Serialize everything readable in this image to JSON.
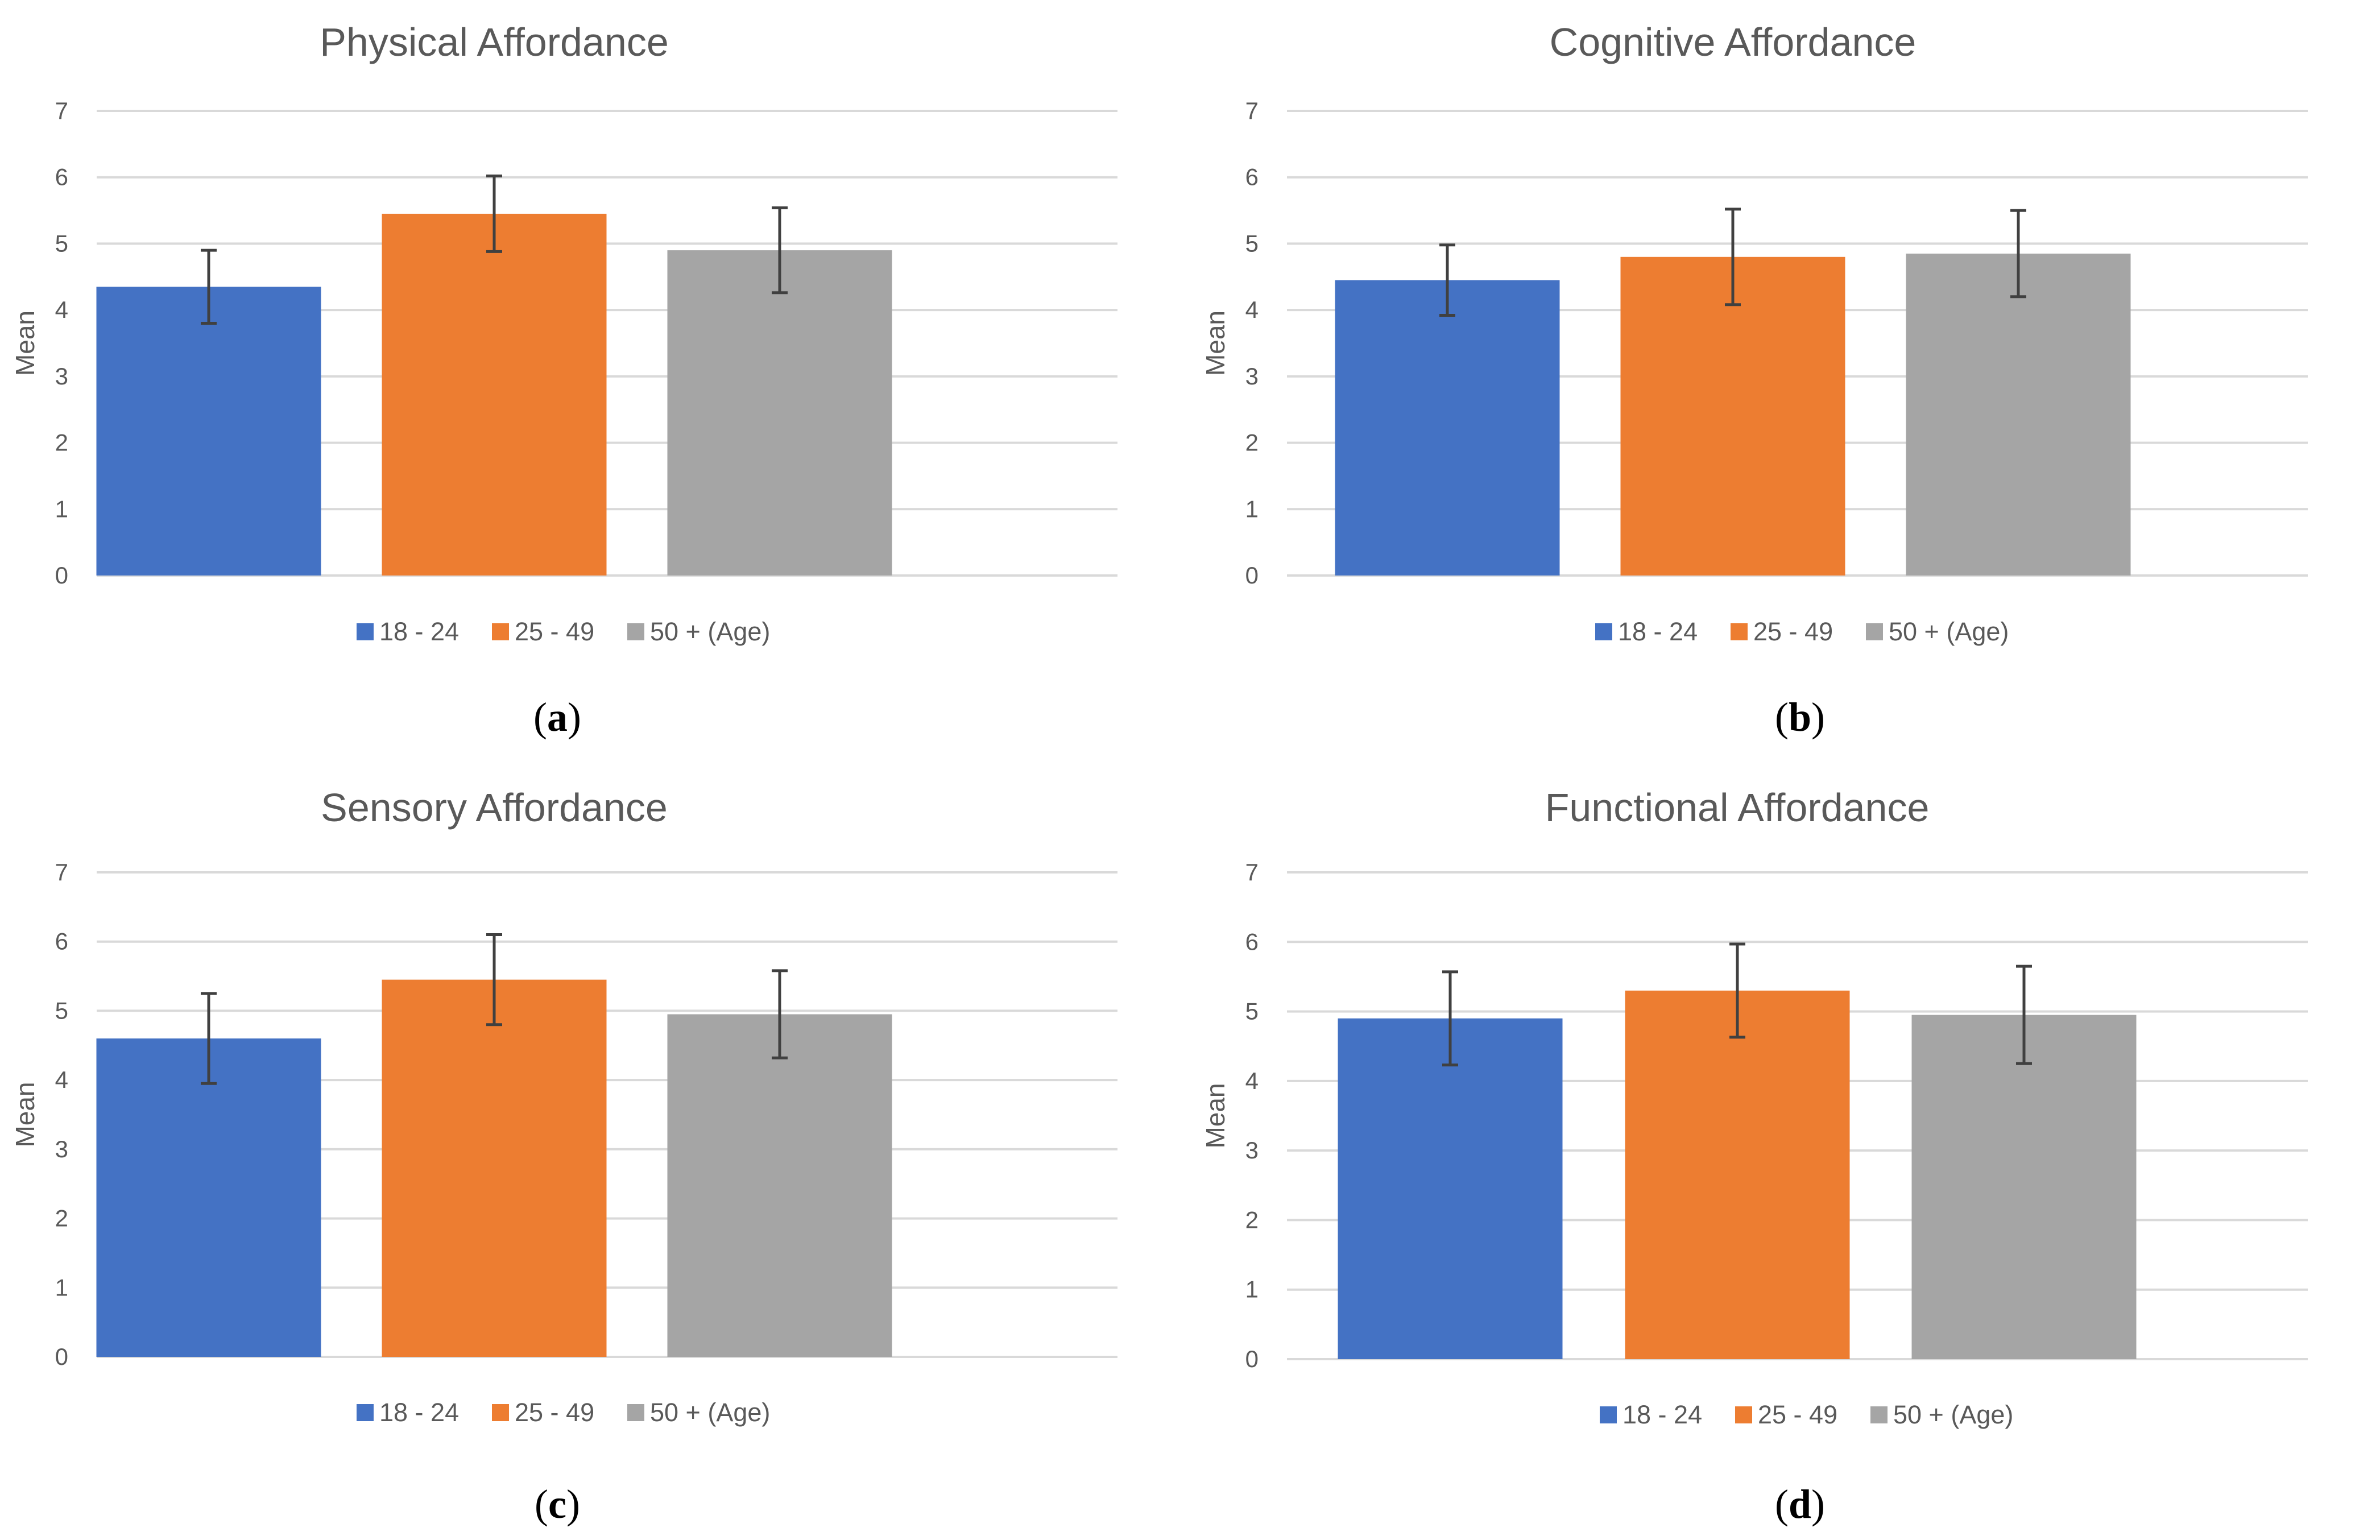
{
  "colors": {
    "18-24": "#4472C4",
    "25-49": "#ED7D31",
    "50+": "#A5A5A5",
    "grid": "#D9D9D9",
    "error_bar": "#404040"
  },
  "panels": [
    {
      "caption": "a"
    },
    {
      "caption": "b"
    },
    {
      "caption": "c"
    },
    {
      "caption": "d"
    }
  ],
  "chart_data": [
    {
      "type": "bar",
      "title": "Physical Affordance",
      "ylabel": "Mean",
      "xlabel": "",
      "ylim": [
        0,
        7
      ],
      "yticks": [
        "0",
        "1",
        "2",
        "3",
        "4",
        "5",
        "6",
        "7"
      ],
      "grid": true,
      "legend_position": "bottom",
      "series": [
        {
          "name": "18 - 24",
          "value": 4.35,
          "error": [
            3.8,
            4.9
          ]
        },
        {
          "name": "25 - 49",
          "value": 5.45,
          "error": [
            4.88,
            6.02
          ]
        },
        {
          "name": "50 + (Age)",
          "value": 4.9,
          "error": [
            4.26,
            5.54
          ]
        }
      ]
    },
    {
      "type": "bar",
      "title": "Cognitive Affordance",
      "ylabel": "Mean",
      "xlabel": "",
      "ylim": [
        0,
        7
      ],
      "yticks": [
        "0",
        "1",
        "2",
        "3",
        "4",
        "5",
        "6",
        "7"
      ],
      "grid": true,
      "legend_position": "bottom",
      "series": [
        {
          "name": "18 - 24",
          "value": 4.45,
          "error": [
            3.92,
            4.98
          ]
        },
        {
          "name": "25 - 49",
          "value": 4.8,
          "error": [
            4.08,
            5.52
          ]
        },
        {
          "name": "50 + (Age)",
          "value": 4.85,
          "error": [
            4.2,
            5.5
          ]
        }
      ]
    },
    {
      "type": "bar",
      "title": "Sensory Affordance",
      "ylabel": "Mean",
      "xlabel": "",
      "ylim": [
        0,
        7
      ],
      "yticks": [
        "0",
        "1",
        "2",
        "3",
        "4",
        "5",
        "6",
        "7"
      ],
      "grid": true,
      "legend_position": "bottom",
      "series": [
        {
          "name": "18 - 24",
          "value": 4.6,
          "error": [
            3.95,
            5.25
          ]
        },
        {
          "name": "25 - 49",
          "value": 5.45,
          "error": [
            4.8,
            6.1
          ]
        },
        {
          "name": "50 + (Age)",
          "value": 4.95,
          "error": [
            4.32,
            5.58
          ]
        }
      ]
    },
    {
      "type": "bar",
      "title": "Functional Affordance",
      "ylabel": "Mean",
      "xlabel": "",
      "ylim": [
        0,
        7
      ],
      "yticks": [
        "0",
        "1",
        "2",
        "3",
        "4",
        "5",
        "6",
        "7"
      ],
      "grid": true,
      "legend_position": "bottom",
      "series": [
        {
          "name": "18 - 24",
          "value": 4.9,
          "error": [
            4.23,
            5.57
          ]
        },
        {
          "name": "25 - 49",
          "value": 5.3,
          "error": [
            4.63,
            5.97
          ]
        },
        {
          "name": "50 + (Age)",
          "value": 4.95,
          "error": [
            4.25,
            5.65
          ]
        }
      ]
    }
  ]
}
